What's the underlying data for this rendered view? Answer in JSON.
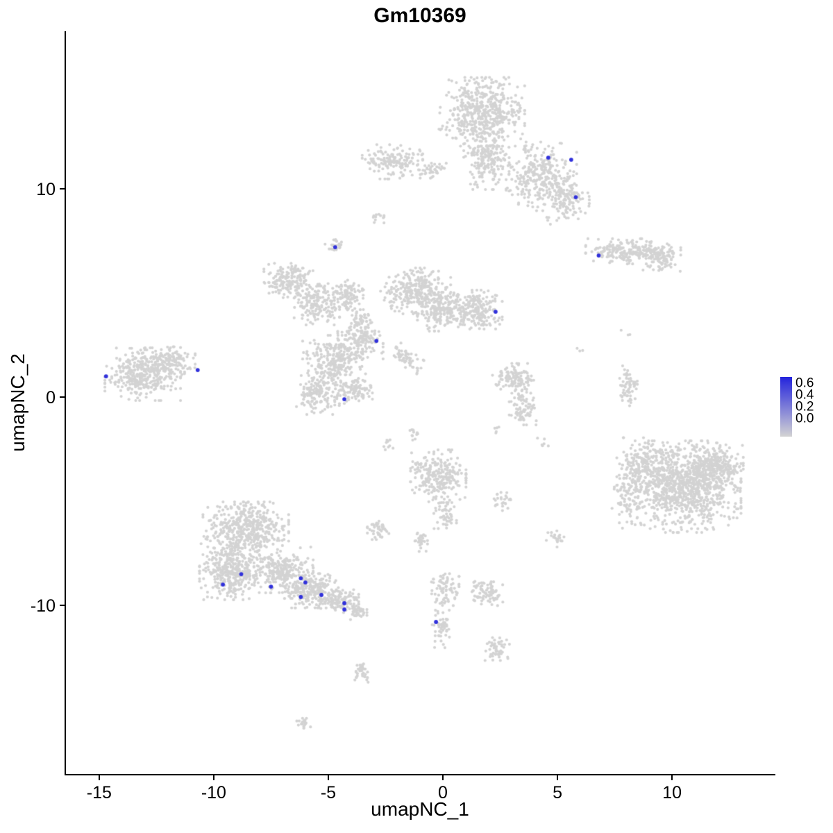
{
  "chart_data": {
    "type": "scatter",
    "title": "Gm10369",
    "xlabel": "umapNC_1",
    "ylabel": "umapNC_2",
    "x_range": [
      -16.45,
      14.45
    ],
    "y_range": [
      -18.1,
      17.57
    ],
    "x_ticks": [
      -15,
      -10,
      -5,
      0,
      5,
      10
    ],
    "y_ticks": [
      -10,
      0,
      10
    ],
    "grid": false,
    "background": "#ffffff",
    "legend": {
      "position": "right",
      "ticks": [
        "0.6",
        "0.4",
        "0.2",
        "0.0"
      ],
      "min_value": 0.0,
      "max_value": 0.65
    },
    "colors": {
      "low": "#d3d3d3",
      "high": "#2424dc",
      "axis": "#000000"
    },
    "clusters": [
      {
        "cx": 1.7,
        "cy": 13.7,
        "rx": 1.7,
        "ry": 1.5,
        "n": 500
      },
      {
        "cx": 1.9,
        "cy": 11.4,
        "rx": 0.9,
        "ry": 1.3,
        "n": 200
      },
      {
        "cx": 4.3,
        "cy": 10.6,
        "rx": 1.4,
        "ry": 1.5,
        "n": 300
      },
      {
        "cx": 5.4,
        "cy": 9.4,
        "rx": 0.9,
        "ry": 1.0,
        "n": 120
      },
      {
        "cx": -2.2,
        "cy": 11.3,
        "rx": 1.2,
        "ry": 0.75,
        "n": 150
      },
      {
        "cx": -0.4,
        "cy": 10.9,
        "rx": 0.6,
        "ry": 0.35,
        "n": 40
      },
      {
        "cx": 8.1,
        "cy": 7.0,
        "rx": 1.7,
        "ry": 0.55,
        "n": 220
      },
      {
        "cx": 9.5,
        "cy": 6.7,
        "rx": 0.8,
        "ry": 0.6,
        "n": 80
      },
      {
        "cx": -4.7,
        "cy": 7.3,
        "rx": 0.4,
        "ry": 0.35,
        "n": 30
      },
      {
        "cx": -2.9,
        "cy": 8.6,
        "rx": 0.3,
        "ry": 0.25,
        "n": 12
      },
      {
        "cx": -6.6,
        "cy": 5.6,
        "rx": 1.1,
        "ry": 0.75,
        "n": 180
      },
      {
        "cx": -5.5,
        "cy": 4.4,
        "rx": 0.9,
        "ry": 0.85,
        "n": 150
      },
      {
        "cx": -4.2,
        "cy": 4.9,
        "rx": 0.75,
        "ry": 0.65,
        "n": 100
      },
      {
        "cx": -3.6,
        "cy": 3.7,
        "rx": 0.45,
        "ry": 0.5,
        "n": 50
      },
      {
        "cx": -1.2,
        "cy": 5.1,
        "rx": 1.4,
        "ry": 1.0,
        "n": 300
      },
      {
        "cx": 0.1,
        "cy": 4.1,
        "rx": 1.1,
        "ry": 0.85,
        "n": 200
      },
      {
        "cx": 1.6,
        "cy": 4.2,
        "rx": 0.9,
        "ry": 0.85,
        "n": 180
      },
      {
        "cx": -4.8,
        "cy": 1.7,
        "rx": 1.2,
        "ry": 1.15,
        "n": 250
      },
      {
        "cx": -3.6,
        "cy": 2.7,
        "rx": 0.9,
        "ry": 0.85,
        "n": 150
      },
      {
        "cx": -5.4,
        "cy": 0.1,
        "rx": 0.9,
        "ry": 0.85,
        "n": 150
      },
      {
        "cx": -3.9,
        "cy": 0.4,
        "rx": 0.75,
        "ry": 0.65,
        "n": 100
      },
      {
        "cx": -1.6,
        "cy": 1.9,
        "rx": 0.9,
        "ry": 0.35,
        "n": 60,
        "rot": -40
      },
      {
        "cx": -13.1,
        "cy": 1.1,
        "rx": 1.5,
        "ry": 1.15,
        "n": 350
      },
      {
        "cx": -11.8,
        "cy": 1.7,
        "rx": 0.9,
        "ry": 0.65,
        "n": 120
      },
      {
        "cx": 3.1,
        "cy": 0.9,
        "rx": 0.85,
        "ry": 0.65,
        "n": 120
      },
      {
        "cx": 3.5,
        "cy": -0.4,
        "rx": 0.55,
        "ry": 0.85,
        "n": 80
      },
      {
        "cx": 8.1,
        "cy": 0.4,
        "rx": 0.35,
        "ry": 1.0,
        "n": 60
      },
      {
        "cx": 10.7,
        "cy": -4.3,
        "rx": 2.1,
        "ry": 2.0,
        "n": 900
      },
      {
        "cx": 8.8,
        "cy": -3.6,
        "rx": 1.1,
        "ry": 1.5,
        "n": 250
      },
      {
        "cx": 11.9,
        "cy": -3.3,
        "rx": 1.1,
        "ry": 1.0,
        "n": 250
      },
      {
        "cx": 8.1,
        "cy": -4.9,
        "rx": 0.75,
        "ry": 1.3,
        "n": 80
      },
      {
        "cx": -0.2,
        "cy": -3.8,
        "rx": 1.1,
        "ry": 1.15,
        "n": 250
      },
      {
        "cx": 0.1,
        "cy": -5.6,
        "rx": 0.45,
        "ry": 0.65,
        "n": 50
      },
      {
        "cx": 2.5,
        "cy": -4.9,
        "rx": 0.45,
        "ry": 0.5,
        "n": 25
      },
      {
        "cx": 4.9,
        "cy": -6.8,
        "rx": 0.35,
        "ry": 0.4,
        "n": 20
      },
      {
        "cx": -8.6,
        "cy": -6.3,
        "rx": 1.7,
        "ry": 1.15,
        "n": 450
      },
      {
        "cx": -9.3,
        "cy": -8.3,
        "rx": 1.2,
        "ry": 1.3,
        "n": 350
      },
      {
        "cx": -7.2,
        "cy": -8.3,
        "rx": 1.4,
        "ry": 1.0,
        "n": 300
      },
      {
        "cx": -5.7,
        "cy": -9.3,
        "rx": 1.1,
        "ry": 0.75,
        "n": 220
      },
      {
        "cx": -4.5,
        "cy": -9.8,
        "rx": 0.75,
        "ry": 0.5,
        "n": 120
      },
      {
        "cx": -3.7,
        "cy": -10.3,
        "rx": 0.35,
        "ry": 0.35,
        "n": 40
      },
      {
        "cx": -2.8,
        "cy": -6.4,
        "rx": 0.45,
        "ry": 0.4,
        "n": 40
      },
      {
        "cx": -1.0,
        "cy": -6.9,
        "rx": 0.3,
        "ry": 0.5,
        "n": 30
      },
      {
        "cx": 0.1,
        "cy": -9.3,
        "rx": 0.55,
        "ry": 0.85,
        "n": 80
      },
      {
        "cx": -0.1,
        "cy": -11.1,
        "rx": 0.35,
        "ry": 0.85,
        "n": 50
      },
      {
        "cx": 1.9,
        "cy": -9.4,
        "rx": 0.65,
        "ry": 0.6,
        "n": 80
      },
      {
        "cx": 2.3,
        "cy": -12.1,
        "rx": 0.55,
        "ry": 0.5,
        "n": 50
      },
      {
        "cx": -3.5,
        "cy": -13.2,
        "rx": 0.35,
        "ry": 0.45,
        "n": 35
      },
      {
        "cx": -6.1,
        "cy": -15.7,
        "rx": 0.35,
        "ry": 0.25,
        "n": 20
      },
      {
        "cx": 4.3,
        "cy": -2.3,
        "rx": 0.3,
        "ry": 0.3,
        "n": 6
      },
      {
        "cx": 2.3,
        "cy": -1.6,
        "rx": 0.25,
        "ry": 0.25,
        "n": 5
      },
      {
        "cx": -2.4,
        "cy": -2.3,
        "rx": 0.25,
        "ry": 0.4,
        "n": 10
      },
      {
        "cx": -1.2,
        "cy": -1.8,
        "rx": 0.3,
        "ry": 0.6,
        "n": 12
      },
      {
        "cx": 6.0,
        "cy": 2.3,
        "rx": 0.2,
        "ry": 0.2,
        "n": 3
      },
      {
        "cx": 8.0,
        "cy": 3.0,
        "rx": 0.2,
        "ry": 0.2,
        "n": 3
      }
    ],
    "highlighted_cells": [
      {
        "x": 4.6,
        "y": 11.5,
        "value": 0.6
      },
      {
        "x": 5.6,
        "y": 11.4,
        "value": 0.6
      },
      {
        "x": 5.8,
        "y": 9.6,
        "value": 0.6
      },
      {
        "x": 6.8,
        "y": 6.8,
        "value": 0.6
      },
      {
        "x": -4.7,
        "y": 7.2,
        "value": 0.6
      },
      {
        "x": 2.3,
        "y": 4.1,
        "value": 0.6
      },
      {
        "x": -2.9,
        "y": 2.7,
        "value": 0.6
      },
      {
        "x": -4.3,
        "y": -0.1,
        "value": 0.6
      },
      {
        "x": -14.7,
        "y": 1.0,
        "value": 0.6
      },
      {
        "x": -10.7,
        "y": 1.3,
        "value": 0.6
      },
      {
        "x": -9.6,
        "y": -9.0,
        "value": 0.6
      },
      {
        "x": -8.8,
        "y": -8.5,
        "value": 0.6
      },
      {
        "x": -7.5,
        "y": -9.1,
        "value": 0.6
      },
      {
        "x": -6.2,
        "y": -8.7,
        "value": 0.6
      },
      {
        "x": -6.0,
        "y": -8.9,
        "value": 0.6
      },
      {
        "x": -6.2,
        "y": -9.6,
        "value": 0.6
      },
      {
        "x": -5.3,
        "y": -9.5,
        "value": 0.6
      },
      {
        "x": -4.3,
        "y": -9.9,
        "value": 0.6
      },
      {
        "x": -4.3,
        "y": -10.2,
        "value": 0.6
      },
      {
        "x": -0.3,
        "y": -10.8,
        "value": 0.6
      }
    ]
  }
}
